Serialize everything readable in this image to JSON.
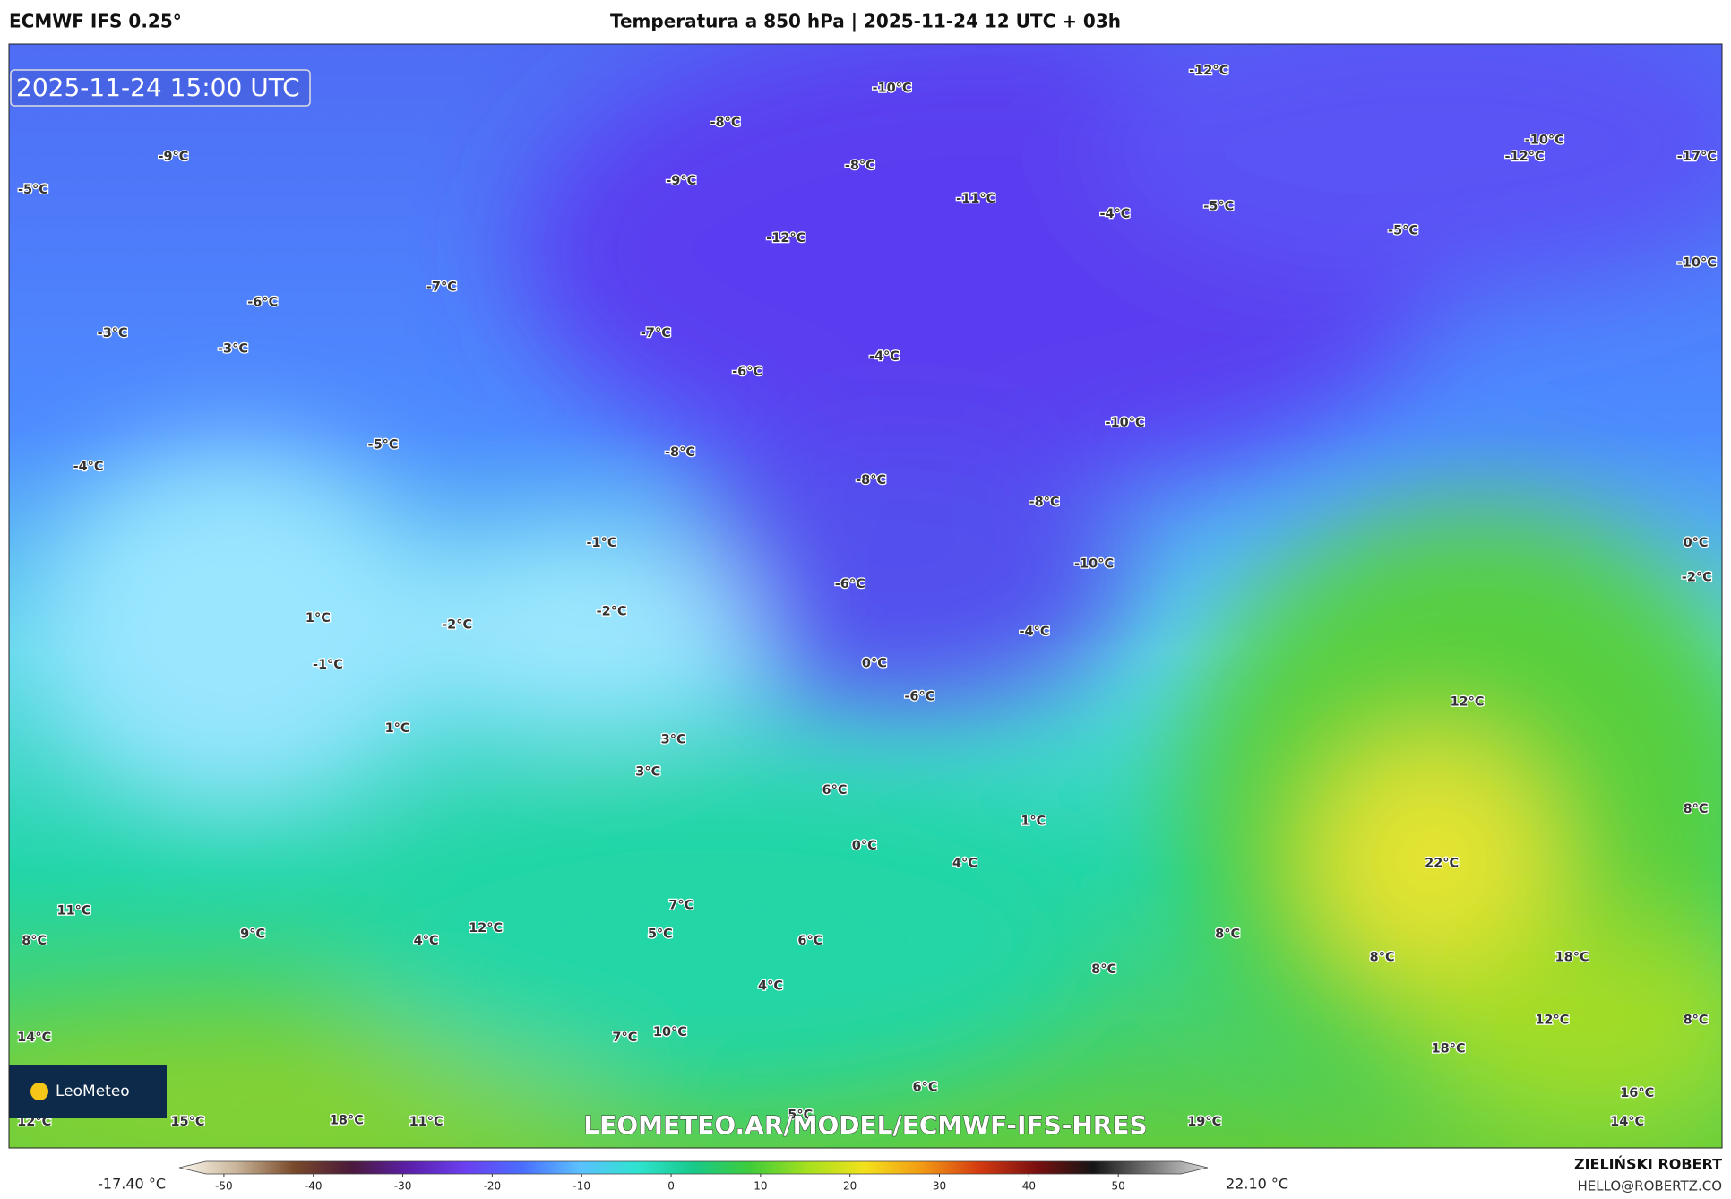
{
  "header": {
    "model": "ECMWF IFS 0.25°",
    "title": "Temperatura a 850 hPa | 2025-11-24 12 UTC + 03h"
  },
  "map": {
    "timestamp": "2025-11-24 15:00 UTC",
    "url": "LEOMETEO.AR/MODEL/ECMWF-IFS-HRES",
    "logo": "LeoMeteo",
    "labels": [
      "-10°C",
      "-12°C",
      "-8°C",
      "-9°C",
      "-9°C",
      "-8°C",
      "-11°C",
      "-4°C",
      "-5°C",
      "-5°C",
      "-10°C",
      "-12°C",
      "-17°C",
      "-5°C",
      "-12°C",
      "-10°C",
      "-7°C",
      "-6°C",
      "-3°C",
      "-3°C",
      "-7°C",
      "-4°C",
      "-6°C",
      "-10°C",
      "-5°C",
      "-4°C",
      "-8°C",
      "-8°C",
      "-8°C",
      "-1°C",
      "0°C",
      "-10°C",
      "-2°C",
      "-6°C",
      "-2°C",
      "1°C",
      "-2°C",
      "-4°C",
      "-1°C",
      "0°C",
      "-6°C",
      "12°C",
      "1°C",
      "3°C",
      "3°C",
      "6°C",
      "8°C",
      "1°C",
      "0°C",
      "4°C",
      "22°C",
      "11°C",
      "7°C",
      "9°C",
      "12°C",
      "5°C",
      "8°C",
      "8°C",
      "4°C",
      "6°C",
      "8°C",
      "18°C",
      "8°C",
      "4°C",
      "12°C",
      "8°C",
      "14°C",
      "7°C",
      "10°C",
      "18°C",
      "6°C",
      "16°C",
      "12°C",
      "15°C",
      "18°C",
      "11°C",
      "5°C",
      "19°C",
      "14°C"
    ]
  },
  "colorbar": {
    "min_label": "-17.40 °C",
    "max_label": "22.10 °C",
    "lim": [
      -55,
      60
    ],
    "ticks": [
      -50,
      -40,
      -30,
      -20,
      -10,
      0,
      10,
      20,
      30,
      40,
      50
    ],
    "colors": [
      "#fdf9ee",
      "#c9b59a",
      "#7a4a2a",
      "#4b1a3a",
      "#5a1fa8",
      "#6b3ff0",
      "#4a6dff",
      "#5bc0ff",
      "#2fe3d0",
      "#18c98a",
      "#3fcc3a",
      "#a6e01e",
      "#f3e11c",
      "#f29a14",
      "#d43a10",
      "#7a1010",
      "#151515",
      "#777777",
      "#d8d8d8"
    ]
  },
  "footer": {
    "author": "ZIELIŃSKI ROBERT",
    "email": "HELLO@ROBERTZ.CO"
  }
}
